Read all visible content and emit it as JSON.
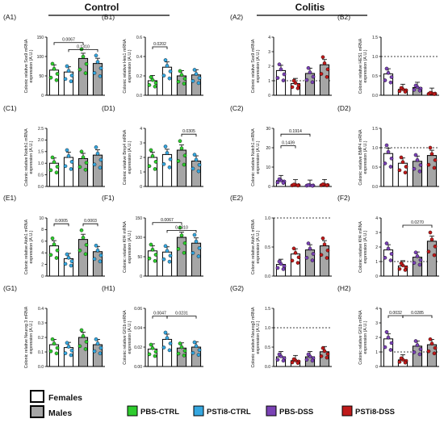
{
  "groups": {
    "control": "Control",
    "colitis": "Colitis"
  },
  "legend": {
    "sexes": [
      {
        "label": "Females",
        "fill": "#ffffff"
      },
      {
        "label": "Males",
        "fill": "#a6a6a6"
      }
    ],
    "conditions": [
      {
        "label": "PBS-CTRL",
        "color": "#2ecc2e"
      },
      {
        "label": "PSTi8-CTRL",
        "color": "#35a7e0"
      },
      {
        "label": "PBS-DSS",
        "color": "#7a42b5"
      },
      {
        "label": "PSTi8-DSS",
        "color": "#c01a1a"
      }
    ]
  },
  "chart_data": [
    {
      "id": "A1",
      "type": "bar",
      "group": "control",
      "ylabel": "Colonic relative Sox9 mRNA expression (A.U.)",
      "ylim": [
        0,
        150
      ],
      "ticks": [
        "0",
        "50",
        "100",
        "150"
      ],
      "bars": [
        {
          "value": 65,
          "fill": "white",
          "pt": "#2ecc2e"
        },
        {
          "value": 60,
          "fill": "white",
          "pt": "#35a7e0"
        },
        {
          "value": 95,
          "fill": "gray",
          "pt": "#2ecc2e"
        },
        {
          "value": 82,
          "fill": "gray",
          "pt": "#35a7e0"
        }
      ],
      "brackets": [
        {
          "from": 0,
          "to": 2,
          "label": "0.0067",
          "y": 136
        },
        {
          "from": 1,
          "to": 3,
          "label": "0.1310",
          "y": 118
        }
      ]
    },
    {
      "id": "B1",
      "type": "bar",
      "group": "control",
      "ylabel": "Colonic relative Hes1 mRNA expression (A.U.)",
      "ylim": [
        0,
        0.6
      ],
      "ticks": [
        "0.0",
        "0.2",
        "0.4",
        "0.6"
      ],
      "bars": [
        {
          "value": 0.15,
          "fill": "white",
          "pt": "#2ecc2e"
        },
        {
          "value": 0.29,
          "fill": "white",
          "pt": "#35a7e0"
        },
        {
          "value": 0.2,
          "fill": "gray",
          "pt": "#2ecc2e"
        },
        {
          "value": 0.21,
          "fill": "gray",
          "pt": "#35a7e0"
        }
      ],
      "brackets": [
        {
          "from": 0,
          "to": 1,
          "label": "0.0202",
          "y": 0.5
        }
      ]
    },
    {
      "id": "A2",
      "type": "bar",
      "group": "colitis",
      "ylabel": "Colonic relative Sox9 mRNA expression (A.U.)",
      "ylim": [
        0,
        4
      ],
      "ticks": [
        "0",
        "1",
        "2",
        "3",
        "4"
      ],
      "baseline": 1,
      "bars": [
        {
          "value": 1.7,
          "fill": "white",
          "pt": "#7a42b5"
        },
        {
          "value": 0.8,
          "fill": "white",
          "pt": "#c01a1a"
        },
        {
          "value": 1.5,
          "fill": "gray",
          "pt": "#7a42b5"
        },
        {
          "value": 2.1,
          "fill": "gray",
          "pt": "#c01a1a"
        }
      ],
      "brackets": []
    },
    {
      "id": "B2",
      "type": "bar",
      "group": "colitis",
      "ylabel": "Colonic relative HES1 mRNA expression (A.U.)",
      "ylim": [
        0,
        1.5
      ],
      "ticks": [
        "0.0",
        "0.5",
        "1.0",
        "1.5"
      ],
      "baseline": 1,
      "bars": [
        {
          "value": 0.55,
          "fill": "white",
          "pt": "#7a42b5"
        },
        {
          "value": 0.15,
          "fill": "white",
          "pt": "#c01a1a"
        },
        {
          "value": 0.2,
          "fill": "gray",
          "pt": "#7a42b5"
        },
        {
          "value": 0.05,
          "fill": "gray",
          "pt": "#c01a1a"
        }
      ],
      "brackets": []
    },
    {
      "id": "C1",
      "type": "bar",
      "group": "control",
      "ylabel": "Colonic relative Notch1 mRNA expression (A.U.)",
      "ylim": [
        0,
        2.5
      ],
      "ticks": [
        "0.0",
        "0.5",
        "1.0",
        "1.5",
        "2.0",
        "2.5"
      ],
      "bars": [
        {
          "value": 1.0,
          "fill": "white",
          "pt": "#2ecc2e"
        },
        {
          "value": 1.25,
          "fill": "white",
          "pt": "#35a7e0"
        },
        {
          "value": 1.2,
          "fill": "gray",
          "pt": "#2ecc2e"
        },
        {
          "value": 1.35,
          "fill": "gray",
          "pt": "#35a7e0"
        }
      ],
      "brackets": []
    },
    {
      "id": "D1",
      "type": "bar",
      "group": "control",
      "ylabel": "Colonic relative Bmp4 mRNA expression (A.U.)",
      "ylim": [
        0,
        4
      ],
      "ticks": [
        "0",
        "1",
        "2",
        "3",
        "4"
      ],
      "bars": [
        {
          "value": 2.0,
          "fill": "white",
          "pt": "#2ecc2e"
        },
        {
          "value": 2.2,
          "fill": "white",
          "pt": "#35a7e0"
        },
        {
          "value": 2.5,
          "fill": "gray",
          "pt": "#2ecc2e"
        },
        {
          "value": 1.75,
          "fill": "gray",
          "pt": "#35a7e0"
        }
      ],
      "brackets": [
        {
          "from": 2,
          "to": 3,
          "label": "0.0305",
          "y": 3.6
        }
      ]
    },
    {
      "id": "C2",
      "type": "bar",
      "group": "colitis",
      "ylabel": "Colonic relative Notch1 mRNA expression (A.U.)",
      "ylim": [
        0,
        30
      ],
      "ticks": [
        "0",
        "10",
        "20",
        "30"
      ],
      "bars": [
        {
          "value": 3,
          "fill": "white",
          "pt": "#7a42b5"
        },
        {
          "value": 0.8,
          "fill": "white",
          "pt": "#c01a1a"
        },
        {
          "value": 0.6,
          "fill": "gray",
          "pt": "#7a42b5"
        },
        {
          "value": 0.9,
          "fill": "gray",
          "pt": "#c01a1a"
        }
      ],
      "brackets": [
        {
          "from": 0,
          "to": 2,
          "label": "0.1914",
          "y": 27
        },
        {
          "from": 0,
          "to": 1,
          "label": "0.1439",
          "y": 21
        }
      ]
    },
    {
      "id": "D2",
      "type": "bar",
      "group": "colitis",
      "ylabel": "Colonic relative BMP4 mRNA expression (A.U.)",
      "ylim": [
        0,
        1.5
      ],
      "ticks": [
        "0.0",
        "0.5",
        "1.0",
        "1.5"
      ],
      "baseline": 1,
      "bars": [
        {
          "value": 0.85,
          "fill": "white",
          "pt": "#7a42b5"
        },
        {
          "value": 0.6,
          "fill": "white",
          "pt": "#c01a1a"
        },
        {
          "value": 0.65,
          "fill": "gray",
          "pt": "#7a42b5"
        },
        {
          "value": 0.8,
          "fill": "gray",
          "pt": "#c01a1a"
        }
      ],
      "brackets": []
    },
    {
      "id": "E1",
      "type": "bar",
      "group": "control",
      "ylabel": "Colonic relative Atoh1 mRNA expression (A.U.)",
      "ylim": [
        0,
        10
      ],
      "ticks": [
        "0",
        "2",
        "4",
        "6",
        "8",
        "10"
      ],
      "bars": [
        {
          "value": 5.2,
          "fill": "white",
          "pt": "#2ecc2e"
        },
        {
          "value": 3.0,
          "fill": "white",
          "pt": "#35a7e0"
        },
        {
          "value": 6.3,
          "fill": "gray",
          "pt": "#2ecc2e"
        },
        {
          "value": 4.2,
          "fill": "gray",
          "pt": "#35a7e0"
        }
      ],
      "brackets": [
        {
          "from": 0,
          "to": 1,
          "label": "0.0005",
          "y": 9
        },
        {
          "from": 2,
          "to": 3,
          "label": "0.0003",
          "y": 9
        }
      ]
    },
    {
      "id": "F1",
      "type": "bar",
      "group": "control",
      "ylabel": "Colonic relative Klf4 mRNA expression (A.U.)",
      "ylim": [
        0,
        150
      ],
      "ticks": [
        "0",
        "50",
        "100",
        "150"
      ],
      "bars": [
        {
          "value": 65,
          "fill": "white",
          "pt": "#2ecc2e"
        },
        {
          "value": 62,
          "fill": "white",
          "pt": "#35a7e0"
        },
        {
          "value": 100,
          "fill": "gray",
          "pt": "#2ecc2e"
        },
        {
          "value": 85,
          "fill": "gray",
          "pt": "#35a7e0"
        }
      ],
      "brackets": [
        {
          "from": 0,
          "to": 2,
          "label": "0.0067",
          "y": 138
        },
        {
          "from": 1,
          "to": 3,
          "label": "0.1310",
          "y": 118
        }
      ]
    },
    {
      "id": "E2",
      "type": "bar",
      "group": "colitis",
      "ylabel": "Colonic relative Atoh1 mRNA expression (A.U.)",
      "ylim": [
        0,
        1
      ],
      "ticks": [
        "0.0",
        "0.5",
        "1.0"
      ],
      "baseline": 1,
      "bars": [
        {
          "value": 0.2,
          "fill": "white",
          "pt": "#7a42b5"
        },
        {
          "value": 0.38,
          "fill": "white",
          "pt": "#c01a1a"
        },
        {
          "value": 0.45,
          "fill": "gray",
          "pt": "#7a42b5"
        },
        {
          "value": 0.52,
          "fill": "gray",
          "pt": "#c01a1a"
        }
      ],
      "brackets": []
    },
    {
      "id": "F2",
      "type": "bar",
      "group": "colitis",
      "ylabel": "Colonic relative Klf4 mRNA expression (A.U.)",
      "ylim": [
        0,
        4
      ],
      "ticks": [
        "0",
        "1",
        "2",
        "3",
        "4"
      ],
      "baseline": 1,
      "bars": [
        {
          "value": 1.8,
          "fill": "white",
          "pt": "#7a42b5"
        },
        {
          "value": 0.7,
          "fill": "white",
          "pt": "#c01a1a"
        },
        {
          "value": 1.3,
          "fill": "gray",
          "pt": "#7a42b5"
        },
        {
          "value": 2.4,
          "fill": "gray",
          "pt": "#c01a1a"
        }
      ],
      "brackets": [
        {
          "from": 1,
          "to": 3,
          "label": "0.0270",
          "y": 3.5
        }
      ]
    },
    {
      "id": "G1",
      "type": "bar",
      "group": "control",
      "ylabel": "Colonic relative Neurog 3 mRNA expression (A.U.)",
      "ylim": [
        0,
        0.4
      ],
      "ticks": [
        "0.0",
        "0.1",
        "0.2",
        "0.3",
        "0.4"
      ],
      "bars": [
        {
          "value": 0.15,
          "fill": "white",
          "pt": "#2ecc2e"
        },
        {
          "value": 0.13,
          "fill": "white",
          "pt": "#35a7e0"
        },
        {
          "value": 0.2,
          "fill": "gray",
          "pt": "#2ecc2e"
        },
        {
          "value": 0.15,
          "fill": "gray",
          "pt": "#35a7e0"
        }
      ],
      "brackets": []
    },
    {
      "id": "H1",
      "type": "bar",
      "group": "control",
      "ylabel": "Colonic relative Gfi1b mRNA expression (A.U.)",
      "ylim": [
        0,
        0.06
      ],
      "ticks": [
        "0.00",
        "0.02",
        "0.04",
        "0.06"
      ],
      "bars": [
        {
          "value": 0.018,
          "fill": "white",
          "pt": "#2ecc2e"
        },
        {
          "value": 0.028,
          "fill": "white",
          "pt": "#35a7e0"
        },
        {
          "value": 0.019,
          "fill": "gray",
          "pt": "#2ecc2e"
        },
        {
          "value": 0.02,
          "fill": "gray",
          "pt": "#35a7e0"
        }
      ],
      "brackets": [
        {
          "from": 0,
          "to": 1,
          "label": "0.0047",
          "y": 0.052
        },
        {
          "from": 1,
          "to": 3,
          "label": "0.0231",
          "y": 0.052
        }
      ]
    },
    {
      "id": "G2",
      "type": "bar",
      "group": "colitis",
      "ylabel": "Colonic relative Neurog3 mRNA expression (A.U.)",
      "ylim": [
        0,
        1.5
      ],
      "ticks": [
        "0.0",
        "0.5",
        "1.0",
        "1.5"
      ],
      "baseline": 1,
      "bars": [
        {
          "value": 0.25,
          "fill": "white",
          "pt": "#7a42b5"
        },
        {
          "value": 0.15,
          "fill": "white",
          "pt": "#c01a1a"
        },
        {
          "value": 0.25,
          "fill": "gray",
          "pt": "#7a42b5"
        },
        {
          "value": 0.38,
          "fill": "gray",
          "pt": "#c01a1a"
        }
      ],
      "brackets": []
    },
    {
      "id": "H2",
      "type": "bar",
      "group": "colitis",
      "ylabel": "Colonic relative Gfi1b mRNA expression (A.U.)",
      "ylim": [
        0,
        4
      ],
      "ticks": [
        "0",
        "1",
        "2",
        "3",
        "4"
      ],
      "baseline": 1,
      "bars": [
        {
          "value": 1.9,
          "fill": "white",
          "pt": "#7a42b5"
        },
        {
          "value": 0.45,
          "fill": "white",
          "pt": "#c01a1a"
        },
        {
          "value": 1.4,
          "fill": "gray",
          "pt": "#7a42b5"
        },
        {
          "value": 1.5,
          "fill": "gray",
          "pt": "#c01a1a"
        }
      ],
      "brackets": [
        {
          "from": 0,
          "to": 1,
          "label": "0.0032",
          "y": 3.5
        },
        {
          "from": 1,
          "to": 3,
          "label": "0.0285",
          "y": 3.5
        }
      ]
    }
  ]
}
